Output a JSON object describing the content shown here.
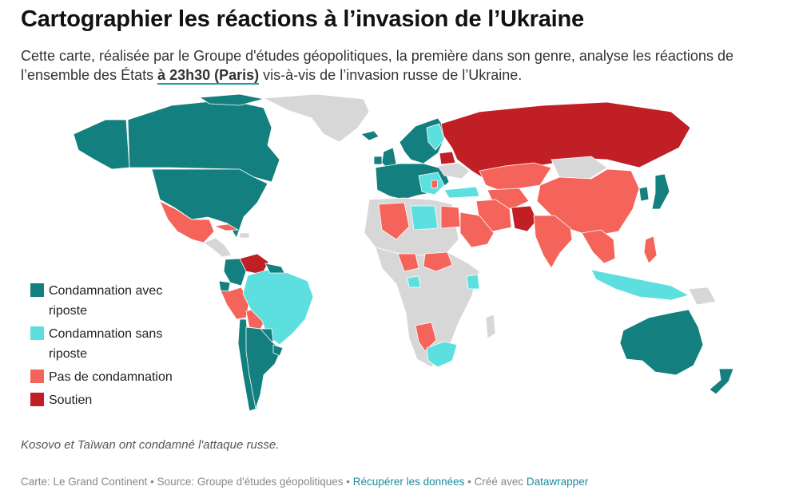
{
  "header": {
    "title": "Cartographier les réactions à l’invasion de l’Ukraine",
    "description_before": "Cette carte, réalisée par le Groupe d'études géopolitiques, la première dans son genre, analyse les réactions de l’ensemble des États ",
    "description_highlight": "à 23h30 (Paris)",
    "description_after": " vis-à-vis de l’invasion russe de l’Ukraine."
  },
  "colors": {
    "condemn_riposte": "#147f7f",
    "condemn_no_riposte": "#5ddfe0",
    "no_condemn": "#f4645a",
    "support": "#c01f25",
    "no_data": "#d7d7d7"
  },
  "legend": {
    "items": [
      {
        "label": "Condamnation avec riposte",
        "color_key": "condemn_riposte"
      },
      {
        "label": "Condamnation sans riposte",
        "color_key": "condemn_no_riposte"
      },
      {
        "label": "Pas de condamnation",
        "color_key": "no_condemn"
      },
      {
        "label": "Soutien",
        "color_key": "support"
      }
    ]
  },
  "note": "Kosovo et Taïwan ont condamné l'attaque russe.",
  "footer": {
    "source": "Carte: Le Grand Continent • Source: Groupe d'études géopolitiques • ",
    "download_link": "Récupérer les données",
    "created_with": " • Créé avec ",
    "tool_link": "Datawrapper"
  }
}
